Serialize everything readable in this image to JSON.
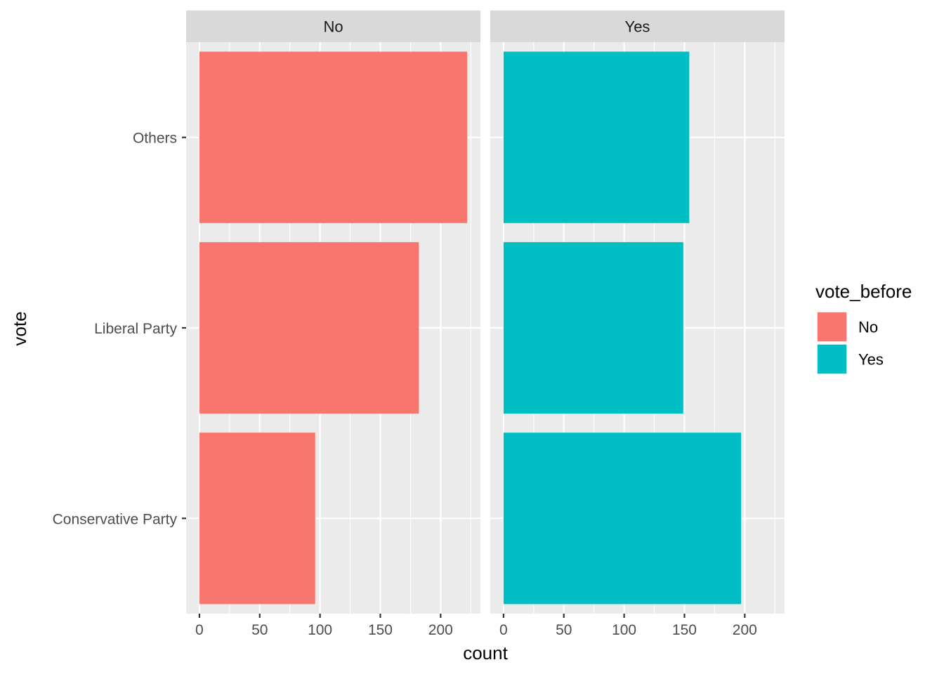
{
  "chart_data": {
    "type": "bar",
    "orientation": "horizontal",
    "facet_by": "vote_before",
    "facets": [
      "No",
      "Yes"
    ],
    "categories": [
      "Others",
      "Liberal Party",
      "Conservative Party"
    ],
    "series": [
      {
        "name": "No",
        "color": "#F8766D",
        "values": [
          222,
          182,
          96
        ]
      },
      {
        "name": "Yes",
        "color": "#00BFC4",
        "values": [
          154,
          149,
          197
        ]
      }
    ],
    "xlabel": "count",
    "ylabel": "vote",
    "xlim": [
      -11,
      233
    ],
    "xticks": [
      0,
      50,
      100,
      150,
      200
    ],
    "grid": true,
    "legend": {
      "title": "vote_before",
      "position": "right",
      "items": [
        {
          "label": "No",
          "color": "#F8766D"
        },
        {
          "label": "Yes",
          "color": "#00BFC4"
        }
      ]
    }
  }
}
